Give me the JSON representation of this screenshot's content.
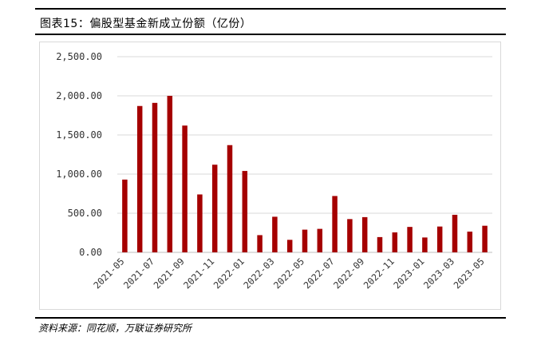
{
  "title": "图表15：偏股型基金新成立份额（亿份）",
  "source": "资料来源：同花顺，万联证券研究所",
  "colors": {
    "bar": "#A50000",
    "grid": "#d9d9d9",
    "axis": "#bfbfbf"
  },
  "chart_data": {
    "type": "bar",
    "categories": [
      "2021-05",
      "2021-06",
      "2021-07",
      "2021-08",
      "2021-09",
      "2021-10",
      "2021-11",
      "2021-12",
      "2022-01",
      "2022-02",
      "2022-03",
      "2022-04",
      "2022-05",
      "2022-06",
      "2022-07",
      "2022-08",
      "2022-09",
      "2022-10",
      "2022-11",
      "2022-12",
      "2023-01",
      "2023-02",
      "2023-03",
      "2023-04",
      "2023-05"
    ],
    "values": [
      930,
      1870,
      1910,
      2000,
      1620,
      740,
      1120,
      1370,
      1040,
      220,
      455,
      160,
      290,
      300,
      720,
      425,
      450,
      195,
      255,
      325,
      190,
      330,
      480,
      265,
      340
    ],
    "tick_labels": [
      "2021-05",
      "2021-07",
      "2021-09",
      "2021-11",
      "2022-01",
      "2022-03",
      "2022-05",
      "2022-07",
      "2022-09",
      "2022-11",
      "2023-01",
      "2023-03",
      "2023-05"
    ],
    "y_tick_labels": [
      "0.00",
      "500.00",
      "1,000.00",
      "1,500.00",
      "2,000.00",
      "2,500.00"
    ],
    "ylim": [
      0,
      2500
    ],
    "grid": true,
    "legend": false,
    "title": "",
    "xlabel": "",
    "ylabel": ""
  }
}
